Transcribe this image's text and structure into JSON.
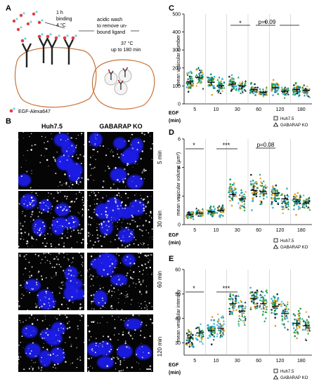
{
  "panel_a": {
    "letter": "A",
    "steps": {
      "binding_time": "1 h",
      "binding_word": "binding",
      "binding_temp": "4 °C",
      "wash_1": "acidic wash",
      "wash_2": "to remove un-",
      "wash_3": "bound ligand",
      "incubate_1": "37 °C",
      "incubate_2": "up to 180 min"
    },
    "legend_label": "EGF-Alexa647"
  },
  "panel_b": {
    "letter": "B",
    "col_headers": [
      "Huh7.5",
      "GABARAP KO"
    ],
    "row_labels": [
      "5 min",
      "30 min",
      "60 min",
      "120 min"
    ]
  },
  "panel_c": {
    "letter": "C",
    "annotations": [
      "*",
      "*",
      "p=0.09"
    ]
  },
  "panel_d": {
    "letter": "D",
    "annotations": [
      "*",
      "***",
      "p=0.08"
    ]
  },
  "panel_e": {
    "letter": "E",
    "annotations": [
      "*",
      "***"
    ]
  },
  "shared": {
    "xaxis_title_1": "EGF",
    "xaxis_title_2": "(min)",
    "legend_huh": "Huh7.5",
    "legend_ko": "GABARAP KO"
  },
  "colors": {
    "nucleus": "#1e1ee6",
    "cell_outline": "#c8733a",
    "egf_dot": "#e23c3c",
    "rep_colors": [
      "#0b8f7a",
      "#36b3e0",
      "#2d9e3f",
      "#1a2a40",
      "#e3a020"
    ]
  },
  "chart_data": [
    {
      "type": "scatter",
      "panel": "C",
      "ylabel": "mean vesicular number",
      "ylim": [
        0,
        500
      ],
      "yticks": [
        0,
        100,
        200,
        300,
        400,
        500
      ],
      "categories": [
        "5",
        "10",
        "30",
        "60",
        "120",
        "180"
      ],
      "series": [
        {
          "name": "Huh7.5",
          "values": [
            125,
            120,
            110,
            80,
            90,
            80
          ]
        },
        {
          "name": "GABARAP KO",
          "values": [
            145,
            100,
            100,
            65,
            70,
            75
          ]
        }
      ]
    },
    {
      "type": "scatter",
      "panel": "D",
      "ylabel": "mean vesicular volume (µm³)",
      "ylim": [
        0,
        6
      ],
      "yticks": [
        0,
        2,
        4,
        6
      ],
      "categories": [
        "5",
        "10",
        "30",
        "60",
        "120",
        "180"
      ],
      "series": [
        {
          "name": "Huh7.5",
          "values": [
            0.7,
            0.9,
            2.1,
            2.4,
            2.2,
            1.6
          ]
        },
        {
          "name": "GABARAP KO",
          "values": [
            0.8,
            1.0,
            1.8,
            2.3,
            1.8,
            1.5
          ]
        }
      ]
    },
    {
      "type": "scatter",
      "panel": "E",
      "ylabel": "mean vesicular intensity",
      "ylim": [
        25,
        60
      ],
      "yticks": [
        30,
        40,
        50,
        60
      ],
      "categories": [
        "5",
        "10",
        "30",
        "60",
        "120",
        "180"
      ],
      "series": [
        {
          "name": "Huh7.5",
          "values": [
            32,
            35,
            46,
            48,
            45,
            38
          ]
        },
        {
          "name": "GABARAP KO",
          "values": [
            34,
            36,
            43,
            46,
            42,
            37
          ]
        }
      ]
    }
  ]
}
